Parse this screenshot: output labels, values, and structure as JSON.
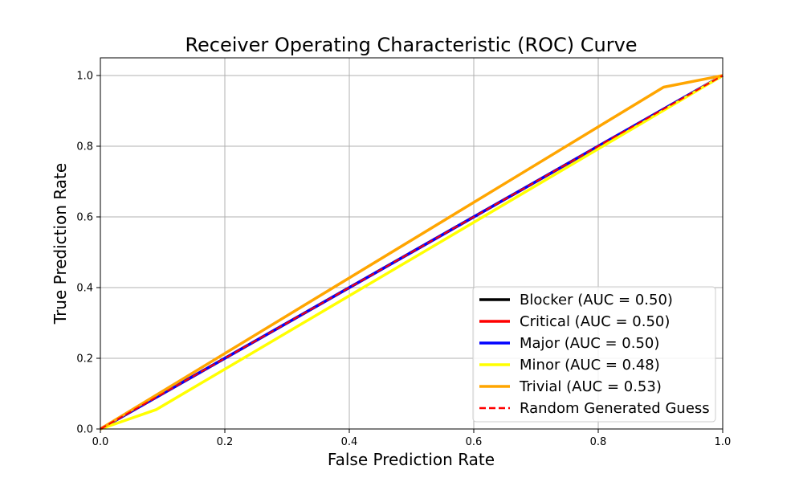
{
  "chart_data": {
    "type": "line",
    "title": "Receiver Operating Characteristic (ROC) Curve",
    "xlabel": "False Prediction Rate",
    "ylabel": "True Prediction Rate",
    "xlim": [
      0.0,
      1.0
    ],
    "ylim": [
      0.0,
      1.05
    ],
    "xticks": [
      "0.0",
      "0.2",
      "0.4",
      "0.6",
      "0.8",
      "1.0"
    ],
    "yticks": [
      "0.0",
      "0.2",
      "0.4",
      "0.6",
      "0.8",
      "1.0"
    ],
    "grid": true,
    "legend_position": "bottom-right",
    "series": [
      {
        "name": "Blocker (AUC = 0.50)",
        "color": "#000000",
        "style": "solid",
        "x": [
          0.0,
          1.0
        ],
        "y": [
          0.0,
          1.0
        ]
      },
      {
        "name": "Critical (AUC = 0.50)",
        "color": "#ff0000",
        "style": "solid",
        "x": [
          0.0,
          1.0
        ],
        "y": [
          0.0,
          1.0
        ]
      },
      {
        "name": "Major (AUC = 0.50)",
        "color": "#0000ff",
        "style": "solid",
        "x": [
          0.0,
          1.0
        ],
        "y": [
          0.0,
          1.0
        ]
      },
      {
        "name": "Minor (AUC = 0.48)",
        "color": "#ffff00",
        "style": "solid",
        "x": [
          0.0,
          0.09,
          1.0
        ],
        "y": [
          0.0,
          0.055,
          1.0
        ]
      },
      {
        "name": "Trivial (AUC = 0.53)",
        "color": "#ffa500",
        "style": "solid",
        "x": [
          0.0,
          0.905,
          1.0
        ],
        "y": [
          0.0,
          0.967,
          1.0
        ]
      },
      {
        "name": "Random Generated Guess",
        "color": "#ff0000",
        "style": "dashed",
        "x": [
          0.0,
          1.0
        ],
        "y": [
          0.0,
          1.0
        ]
      }
    ]
  }
}
